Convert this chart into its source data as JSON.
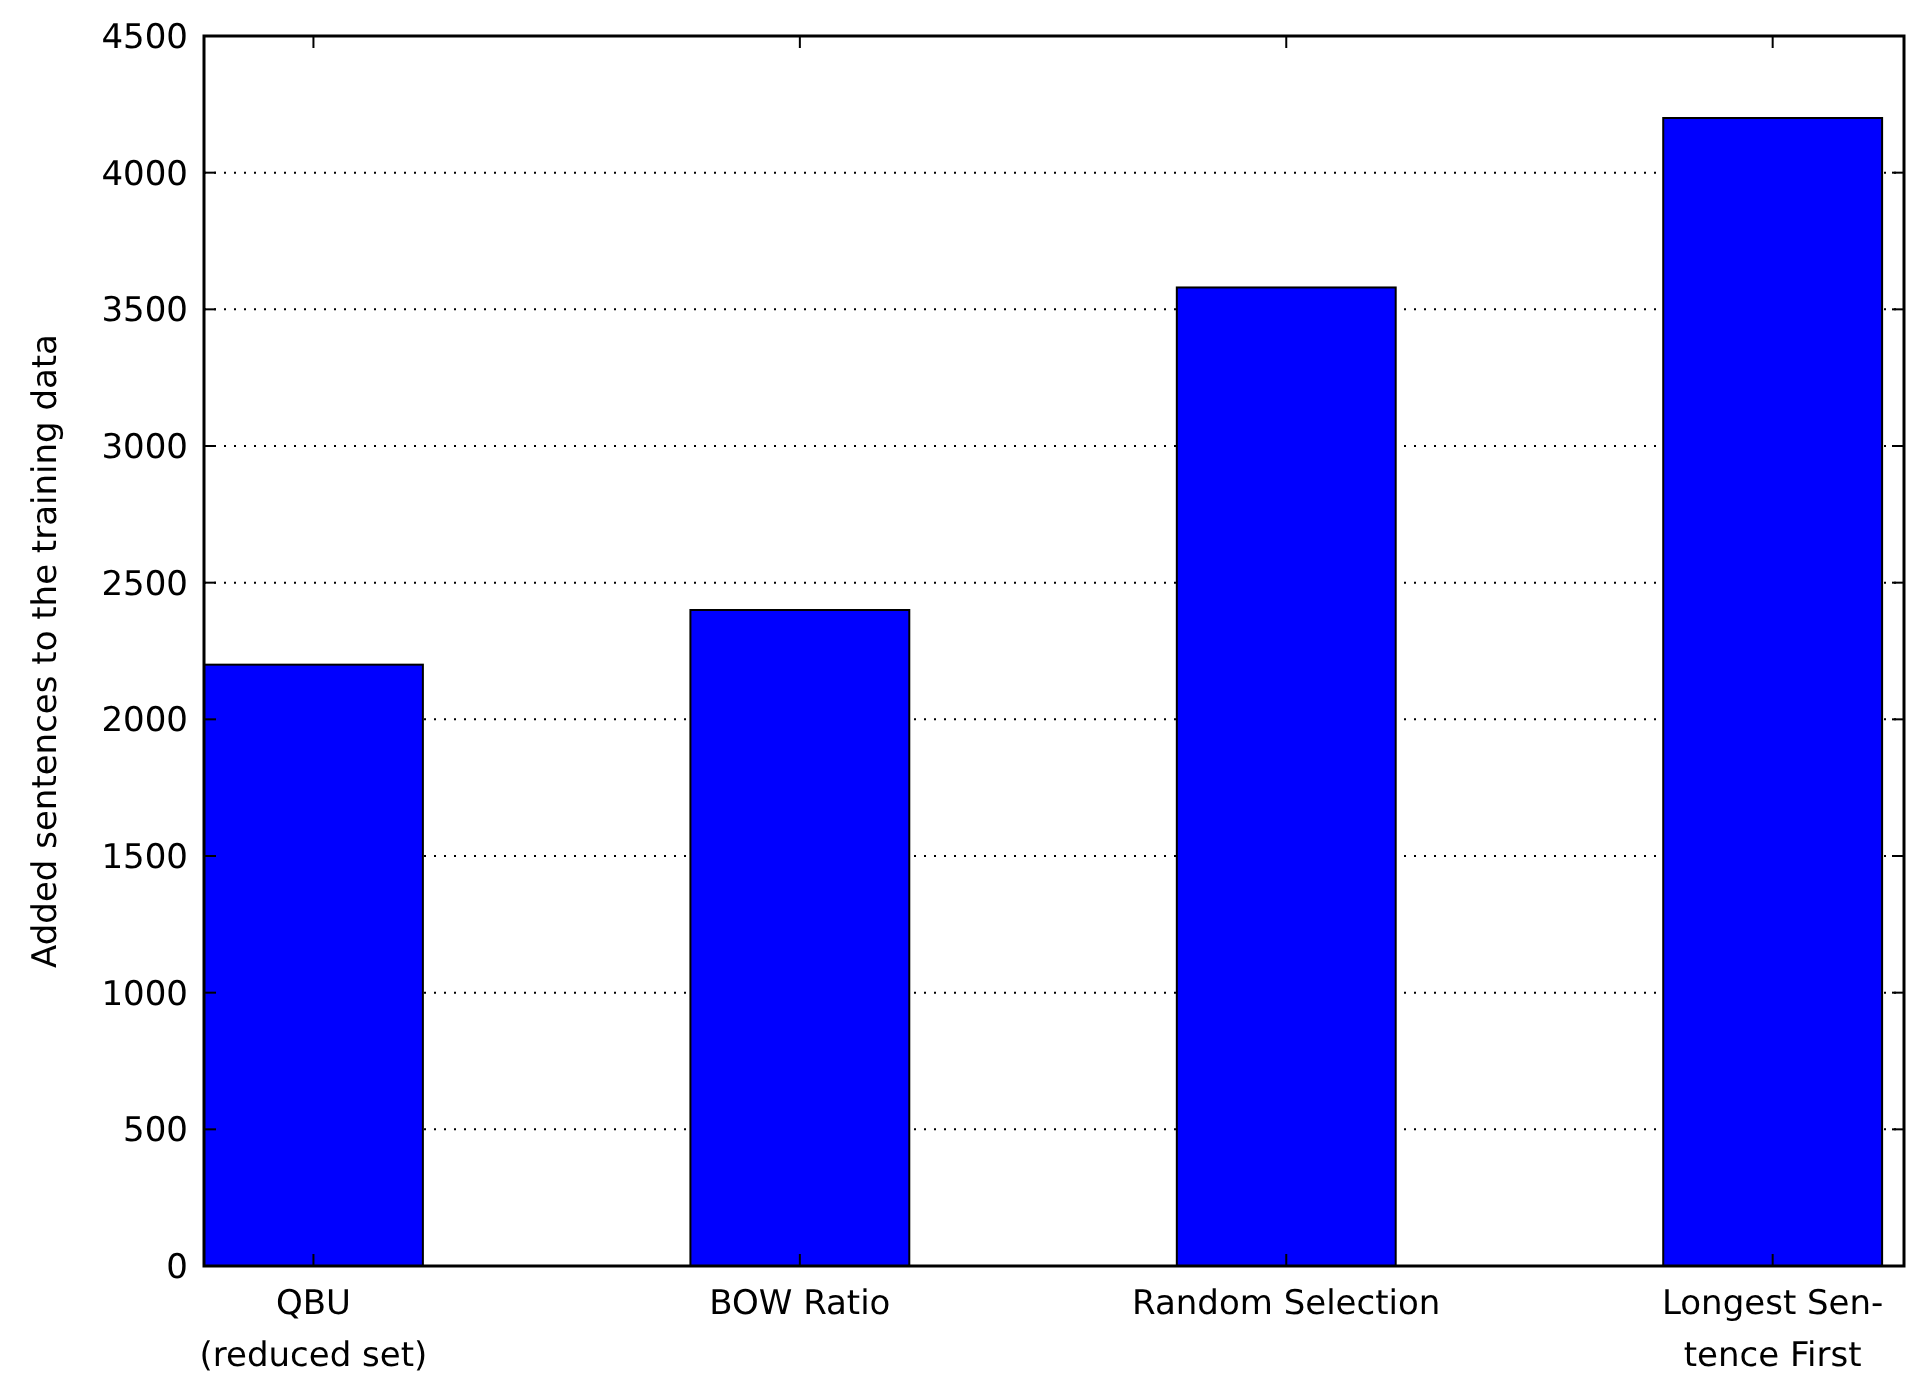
{
  "chart_data": {
    "type": "bar",
    "ylabel": "Added sentences to the training data",
    "categories": [
      "QBU\n(reduced set)",
      "BOW Ratio",
      "Random Selection",
      "Longest Sen-\ntence First"
    ],
    "values": [
      2200,
      2400,
      3580,
      4200
    ],
    "color": "#0000ff",
    "ylim": [
      0,
      4500
    ],
    "yticks": [
      0,
      500,
      1000,
      1500,
      2000,
      2500,
      3000,
      3500,
      4000,
      4500
    ],
    "grid": "y"
  }
}
